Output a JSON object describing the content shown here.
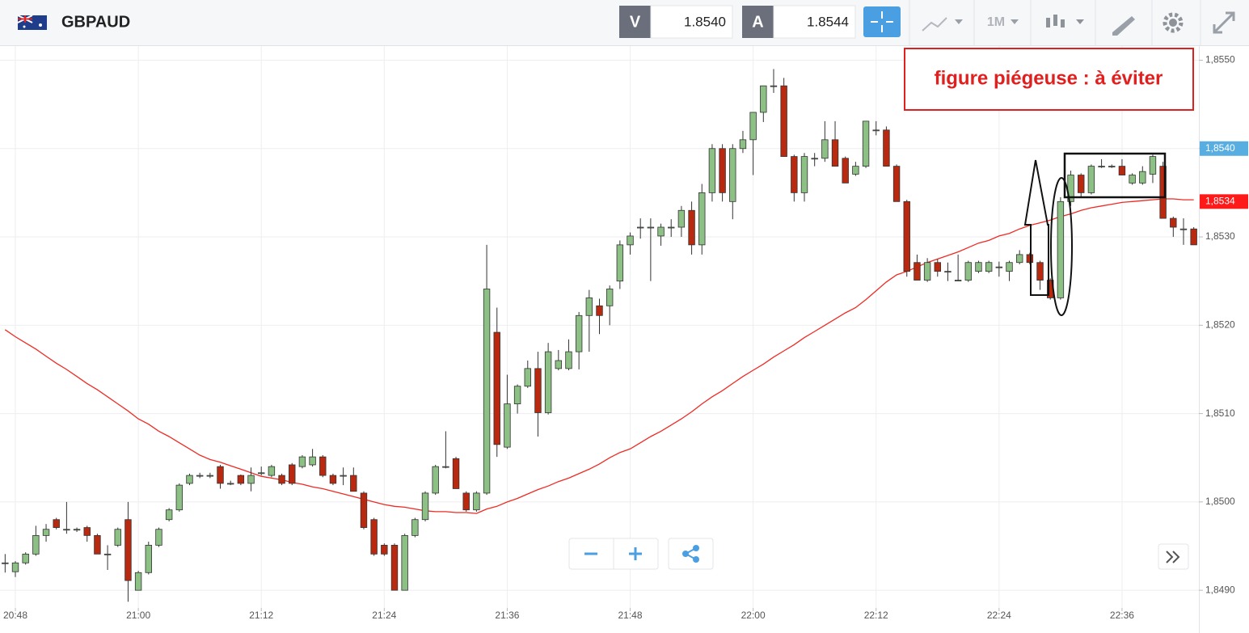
{
  "header": {
    "symbol": "GBPAUD",
    "sell_label": "V",
    "sell_price": "1.8540",
    "buy_label": "A",
    "buy_price": "1.8544",
    "timeframe": "1M"
  },
  "chart_data": {
    "type": "candlestick",
    "annotation": "figure piégeuse : à éviter",
    "categories": [
      null,
      "20:48",
      null,
      null,
      null,
      null,
      null,
      null,
      null,
      null,
      null,
      null,
      null,
      "21:00",
      null,
      null,
      null,
      null,
      null,
      null,
      null,
      null,
      null,
      null,
      null,
      "21:12",
      null,
      null,
      null,
      null,
      null,
      null,
      null,
      null,
      null,
      null,
      null,
      "21:24",
      null,
      null,
      null,
      null,
      null,
      null,
      null,
      null,
      null,
      null,
      null,
      "21:36",
      null,
      null,
      null,
      null,
      null,
      null,
      null,
      null,
      null,
      null,
      null,
      "21:48",
      null,
      null,
      null,
      null,
      null,
      null,
      null,
      null,
      null,
      null,
      null,
      "22:00",
      null,
      null,
      null,
      null,
      null,
      null,
      null,
      null,
      null,
      null,
      null,
      "22:12",
      null,
      null,
      null,
      null,
      null,
      null,
      null,
      null,
      null,
      null,
      null,
      "22:24",
      null,
      null,
      null,
      null,
      null,
      null,
      null,
      null,
      null,
      null,
      null,
      "22:36",
      null,
      null,
      null,
      null,
      null,
      null,
      null
    ],
    "open": [
      1.84931,
      1.84921,
      1.84931,
      1.84941,
      1.84962,
      1.8498,
      1.84969,
      1.84969,
      1.84971,
      1.84962,
      1.84941,
      1.84951,
      1.8498,
      1.849,
      1.8492,
      1.84951,
      1.8498,
      1.84991,
      1.85021,
      1.8503,
      1.8503,
      1.8504,
      1.85021,
      1.8503,
      1.85021,
      1.85033,
      1.8503,
      1.8503,
      1.85042,
      1.8504,
      1.85042,
      1.85051,
      1.8503,
      1.8503,
      1.8503,
      1.8501,
      1.8498,
      1.84951,
      1.84951,
      1.849,
      1.84962,
      1.8498,
      1.8501,
      1.8504,
      1.85049,
      1.8501,
      1.84991,
      1.8501,
      1.85192,
      1.85062,
      1.85111,
      1.85131,
      1.85151,
      1.85101,
      1.85151,
      1.85151,
      1.8517,
      1.85211,
      1.85222,
      1.85222,
      1.8525,
      1.85291,
      1.85311,
      1.85311,
      1.85301,
      1.85311,
      1.85311,
      1.8533,
      1.85291,
      1.8535,
      1.854,
      1.8534,
      1.854,
      1.8541,
      1.85441,
      1.85471,
      1.85471,
      1.85391,
      1.8535,
      1.85389,
      1.85389,
      1.8541,
      1.85389,
      1.85371,
      1.8538,
      1.85421,
      1.85421,
      1.8538,
      1.8534,
      1.85271,
      1.85251,
      1.85271,
      1.85261,
      1.85251,
      1.85251,
      1.85261,
      1.85261,
      1.85266,
      1.85261,
      1.85271,
      1.8528,
      1.85271,
      1.85251,
      1.85231,
      1.8534,
      1.8537,
      1.8535,
      1.8538,
      1.8538,
      1.8538,
      1.85361,
      1.85361,
      1.85371,
      1.8538,
      1.85321,
      1.85309,
      1.85309
    ],
    "high": [
      1.84941,
      1.84933,
      1.84943,
      1.84973,
      1.84975,
      1.84982,
      1.85,
      1.84971,
      1.84973,
      1.84964,
      1.84951,
      1.84971,
      1.85,
      1.84922,
      1.84955,
      1.84971,
      1.84993,
      1.85021,
      1.85032,
      1.85033,
      1.85033,
      1.85042,
      1.85024,
      1.85031,
      1.85039,
      1.8504,
      1.85042,
      1.85032,
      1.85044,
      1.85053,
      1.8506,
      1.85053,
      1.85032,
      1.85039,
      1.85039,
      1.85012,
      1.84982,
      1.84953,
      1.84953,
      1.84964,
      1.84982,
      1.85012,
      1.85042,
      1.8508,
      1.85051,
      1.85012,
      1.85012,
      1.85291,
      1.8522,
      1.85144,
      1.85133,
      1.8516,
      1.8517,
      1.8518,
      1.85172,
      1.85184,
      1.85215,
      1.8524,
      1.8523,
      1.85245,
      1.85296,
      1.85305,
      1.85321,
      1.85321,
      1.85315,
      1.8532,
      1.85335,
      1.8534,
      1.8536,
      1.85405,
      1.85405,
      1.85405,
      1.8542,
      1.85441,
      1.85471,
      1.8549,
      1.8548,
      1.85393,
      1.85395,
      1.85395,
      1.85431,
      1.85431,
      1.85391,
      1.85385,
      1.85431,
      1.85431,
      1.85425,
      1.85382,
      1.85342,
      1.8528,
      1.85276,
      1.85275,
      1.85271,
      1.8528,
      1.85273,
      1.85273,
      1.85273,
      1.85272,
      1.85273,
      1.85285,
      1.85282,
      1.85273,
      1.85253,
      1.85345,
      1.85375,
      1.85372,
      1.85382,
      1.85388,
      1.85382,
      1.85388,
      1.85372,
      1.8538,
      1.85393,
      1.85385,
      1.85323,
      1.85321,
      1.85311
    ],
    "low": [
      1.8492,
      1.84915,
      1.84929,
      1.84939,
      1.84955,
      1.84969,
      1.84964,
      1.84966,
      1.84955,
      1.84941,
      1.84923,
      1.84949,
      1.84887,
      1.849,
      1.84918,
      1.84949,
      1.84978,
      1.84989,
      1.85019,
      1.85027,
      1.85027,
      1.85015,
      1.85019,
      1.85019,
      1.85012,
      1.8503,
      1.85028,
      1.85019,
      1.85019,
      1.85038,
      1.8504,
      1.85028,
      1.85019,
      1.85019,
      1.85012,
      1.84969,
      1.84939,
      1.84939,
      1.849,
      1.849,
      1.8496,
      1.84978,
      1.85008,
      1.85038,
      1.85015,
      1.84989,
      1.84989,
      1.85008,
      1.85051,
      1.8506,
      1.851,
      1.85129,
      1.85074,
      1.85099,
      1.85149,
      1.85149,
      1.8515,
      1.8517,
      1.8519,
      1.852,
      1.85241,
      1.8528,
      1.85298,
      1.8525,
      1.8529,
      1.853,
      1.853,
      1.8528,
      1.8528,
      1.8534,
      1.8534,
      1.8532,
      1.85395,
      1.8537,
      1.8543,
      1.85463,
      1.85391,
      1.8534,
      1.8534,
      1.8538,
      1.85385,
      1.8538,
      1.85361,
      1.85369,
      1.85378,
      1.85415,
      1.8538,
      1.8534,
      1.85255,
      1.85251,
      1.85249,
      1.85255,
      1.8525,
      1.8525,
      1.85249,
      1.85259,
      1.85259,
      1.85255,
      1.8525,
      1.85269,
      1.85269,
      1.8524,
      1.85229,
      1.85229,
      1.85335,
      1.85345,
      1.85348,
      1.85378,
      1.85378,
      1.8537,
      1.85359,
      1.85359,
      1.85361,
      1.85321,
      1.853,
      1.85291,
      1.85291
    ],
    "close": [
      1.84931,
      1.84931,
      1.84941,
      1.84962,
      1.84969,
      1.84971,
      1.84969,
      1.84969,
      1.84962,
      1.84941,
      1.84941,
      1.84969,
      1.84911,
      1.8492,
      1.84951,
      1.84969,
      1.84991,
      1.85019,
      1.8503,
      1.8503,
      1.8503,
      1.85021,
      1.85021,
      1.85021,
      1.8503,
      1.85033,
      1.8504,
      1.85021,
      1.85021,
      1.85051,
      1.85051,
      1.8503,
      1.85021,
      1.8503,
      1.85012,
      1.84971,
      1.84941,
      1.84941,
      1.849,
      1.84962,
      1.8498,
      1.8501,
      1.8504,
      1.8504,
      1.85015,
      1.84991,
      1.8501,
      1.85241,
      1.85065,
      1.85111,
      1.85131,
      1.85151,
      1.85101,
      1.8517,
      1.8516,
      1.8517,
      1.85211,
      1.85231,
      1.85211,
      1.85241,
      1.85291,
      1.85301,
      1.85311,
      1.85311,
      1.85311,
      1.85311,
      1.8533,
      1.85291,
      1.8535,
      1.854,
      1.8535,
      1.854,
      1.8541,
      1.85441,
      1.85471,
      1.85471,
      1.85391,
      1.8535,
      1.85391,
      1.85389,
      1.8541,
      1.8538,
      1.85361,
      1.8538,
      1.85431,
      1.85421,
      1.8538,
      1.8534,
      1.85261,
      1.85251,
      1.85271,
      1.85261,
      1.85261,
      1.85251,
      1.85271,
      1.85271,
      1.85271,
      1.85266,
      1.85271,
      1.8528,
      1.85271,
      1.85251,
      1.85231,
      1.8534,
      1.8537,
      1.8535,
      1.8538,
      1.8538,
      1.8538,
      1.8537,
      1.8537,
      1.85374,
      1.85391,
      1.85321,
      1.85311,
      1.85309,
      1.85291
    ],
    "up_color": "#8cc084",
    "down_color": "#b8290f",
    "ma": {
      "color": "#ee2b24",
      "values": [
        1.85195,
        1.85187,
        1.8518,
        1.85173,
        1.85165,
        1.85157,
        1.8515,
        1.85142,
        1.85134,
        1.85127,
        1.85119,
        1.85111,
        1.85103,
        1.85094,
        1.85088,
        1.8508,
        1.85074,
        1.85067,
        1.8506,
        1.85053,
        1.85048,
        1.85045,
        1.85041,
        1.85037,
        1.85033,
        1.85029,
        1.85027,
        1.85025,
        1.85022,
        1.8502,
        1.85017,
        1.85015,
        1.85012,
        1.85009,
        1.85006,
        1.85003,
        1.85,
        1.84997,
        1.84995,
        1.84994,
        1.84992,
        1.8499,
        1.84989,
        1.84989,
        1.84988,
        1.84988,
        1.84987,
        1.84992,
        1.84995,
        1.85,
        1.85004,
        1.85009,
        1.85014,
        1.85018,
        1.85023,
        1.85027,
        1.85032,
        1.85037,
        1.85043,
        1.8505,
        1.85056,
        1.8506,
        1.85067,
        1.85074,
        1.8508,
        1.85087,
        1.85094,
        1.85102,
        1.85111,
        1.85119,
        1.85126,
        1.85134,
        1.85142,
        1.85149,
        1.85156,
        1.85164,
        1.85171,
        1.85178,
        1.85186,
        1.85193,
        1.852,
        1.85207,
        1.85214,
        1.8522,
        1.85229,
        1.85239,
        1.85249,
        1.85257,
        1.85261,
        1.85266,
        1.85271,
        1.85275,
        1.85279,
        1.85283,
        1.85288,
        1.85293,
        1.85296,
        1.85301,
        1.85304,
        1.85309,
        1.85313,
        1.85316,
        1.85319,
        1.85323,
        1.85326,
        1.8533,
        1.85333,
        1.85335,
        1.85337,
        1.85339,
        1.8534,
        1.85341,
        1.85342,
        1.85343,
        1.85343,
        1.85342,
        1.85342
      ]
    },
    "ylim": [
      1.8488,
      1.85516
    ],
    "yticks": [
      {
        "value": 1.849,
        "label": "1,8490"
      },
      {
        "value": 1.85,
        "label": "1,8500"
      },
      {
        "value": 1.851,
        "label": "1,8510"
      },
      {
        "value": 1.852,
        "label": "1,8520"
      },
      {
        "value": 1.853,
        "label": "1,8530"
      },
      {
        "value": 1.854,
        "label": "1,8540"
      },
      {
        "value": 1.855,
        "label": "1,8550"
      }
    ],
    "price_markers": [
      {
        "value": 1.854,
        "label": "1,8540",
        "color": "#58aee0"
      },
      {
        "value": 1.8534,
        "label": "1,8534",
        "color": "#ff1a1a"
      }
    ],
    "grid": true
  }
}
